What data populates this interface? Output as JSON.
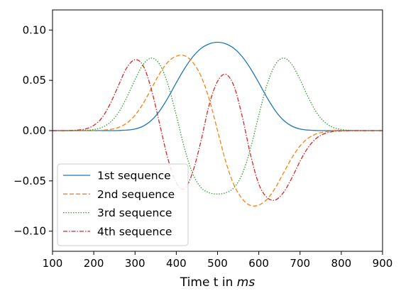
{
  "chart_data": {
    "type": "line",
    "title": "",
    "xlabel": "Time t in ",
    "xlabel_italic": "ms",
    "ylabel": "",
    "xlim": [
      100,
      900
    ],
    "ylim": [
      -0.12,
      0.12
    ],
    "x_ticks": [
      100,
      200,
      300,
      400,
      500,
      600,
      700,
      800,
      900
    ],
    "y_ticks": [
      -0.1,
      -0.05,
      0.0,
      0.05,
      0.1
    ],
    "x_tick_labels": [
      "100",
      "200",
      "300",
      "400",
      "500",
      "600",
      "700",
      "800",
      "900"
    ],
    "y_tick_labels": [
      "−0.10",
      "−0.05",
      "0.00",
      "0.05",
      "0.10"
    ],
    "grid": false,
    "legend_position": "lower-left",
    "x": [
      100,
      120,
      140,
      160,
      180,
      200,
      220,
      240,
      260,
      280,
      300,
      320,
      340,
      360,
      380,
      400,
      420,
      440,
      460,
      480,
      500,
      520,
      540,
      560,
      580,
      600,
      620,
      640,
      660,
      680,
      700,
      720,
      740,
      760,
      780,
      800,
      820,
      840,
      860,
      880,
      900
    ],
    "series": [
      {
        "name": "1st sequence",
        "color": "#1f77b4",
        "dash": "solid",
        "values": [
          0,
          0,
          0,
          0,
          0,
          0,
          0,
          0,
          0.0001,
          0.0005,
          0.0016,
          0.0045,
          0.0103,
          0.0198,
          0.0328,
          0.0476,
          0.0617,
          0.0734,
          0.0817,
          0.0863,
          0.0879,
          0.0863,
          0.0817,
          0.0734,
          0.0617,
          0.0476,
          0.0328,
          0.0198,
          0.0103,
          0.0045,
          0.0016,
          0.0005,
          0.0001,
          0,
          0,
          0,
          0,
          0,
          0,
          0,
          0
        ]
      },
      {
        "name": "2nd sequence",
        "color": "#ff7f0e",
        "dash": "dashed",
        "values": [
          0,
          0,
          0,
          0,
          0,
          0.0001,
          0.0004,
          0.0012,
          0.0032,
          0.0075,
          0.0153,
          0.0272,
          0.0421,
          0.057,
          0.0683,
          0.074,
          0.0745,
          0.0679,
          0.0541,
          0.031,
          0,
          -0.031,
          -0.0541,
          -0.0679,
          -0.0745,
          -0.074,
          -0.0683,
          -0.057,
          -0.0421,
          -0.0272,
          -0.0153,
          -0.0075,
          -0.0032,
          -0.0012,
          -0.0004,
          -0.0001,
          0,
          0,
          0,
          0,
          0
        ]
      },
      {
        "name": "3rd sequence",
        "color": "#2ca02c",
        "dash": "dotted",
        "values": [
          0,
          0,
          0,
          0.0001,
          0.0003,
          0.0011,
          0.0032,
          0.0083,
          0.018,
          0.033,
          0.0507,
          0.0659,
          0.0721,
          0.0656,
          0.0457,
          0.0153,
          -0.0176,
          -0.043,
          -0.0567,
          -0.0618,
          -0.063,
          -0.0618,
          -0.0567,
          -0.043,
          -0.0176,
          0.0153,
          0.0457,
          0.0656,
          0.0721,
          0.0659,
          0.0507,
          0.033,
          0.018,
          0.0083,
          0.0032,
          0.0011,
          0.0003,
          0.0001,
          0,
          0,
          0
        ]
      },
      {
        "name": "4th sequence",
        "color": "#d62728",
        "dash": "dashdot",
        "values": [
          0,
          0,
          0.0001,
          0.0005,
          0.0017,
          0.0052,
          0.0128,
          0.0268,
          0.045,
          0.0625,
          0.0705,
          0.0643,
          0.0404,
          0.006,
          -0.0284,
          -0.0519,
          -0.0578,
          -0.041,
          -0.01,
          0.026,
          0.049,
          0.056,
          0.0441,
          0.0138,
          -0.024,
          -0.0532,
          -0.0665,
          -0.069,
          -0.0614,
          -0.0472,
          -0.0304,
          -0.0165,
          -0.0075,
          -0.0029,
          -0.0009,
          -0.0002,
          0,
          0,
          0,
          0,
          0
        ]
      }
    ]
  }
}
